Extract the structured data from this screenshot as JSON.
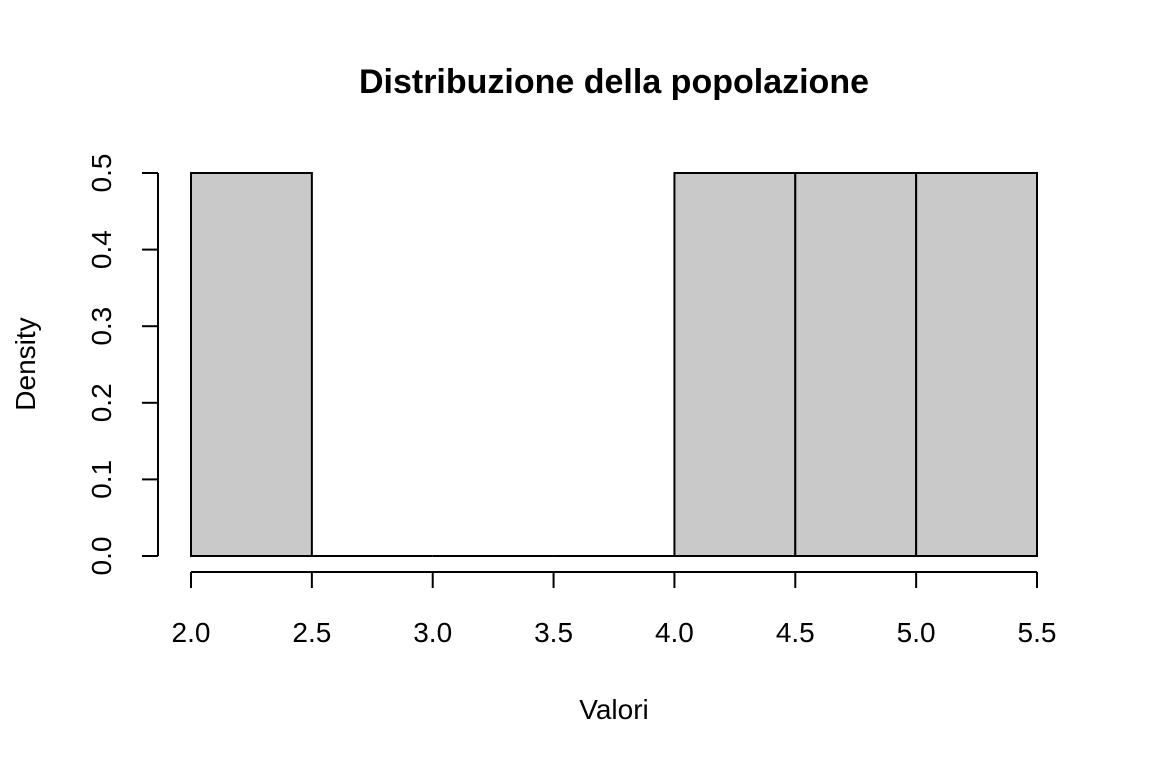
{
  "chart_data": {
    "type": "bar",
    "subtype": "histogram",
    "title": "Distribuzione della popolazione",
    "xlabel": "Valori",
    "ylabel": "Density",
    "bins": [
      {
        "start": 2.0,
        "end": 2.5,
        "density": 0.5
      },
      {
        "start": 2.5,
        "end": 3.0,
        "density": 0.0
      },
      {
        "start": 3.0,
        "end": 3.5,
        "density": 0.0
      },
      {
        "start": 3.5,
        "end": 4.0,
        "density": 0.0
      },
      {
        "start": 4.0,
        "end": 4.5,
        "density": 0.5
      },
      {
        "start": 4.5,
        "end": 5.0,
        "density": 0.5
      },
      {
        "start": 5.0,
        "end": 5.5,
        "density": 0.5
      }
    ],
    "xlim": [
      2.0,
      5.5
    ],
    "ylim": [
      0.0,
      0.5
    ],
    "x_ticks": [
      "2.0",
      "2.5",
      "3.0",
      "3.5",
      "4.0",
      "4.5",
      "5.0",
      "5.5"
    ],
    "y_ticks": [
      "0.0",
      "0.1",
      "0.2",
      "0.3",
      "0.4",
      "0.5"
    ],
    "bar_fill": "#c9c9c9",
    "bar_stroke": "#000000",
    "grid": false,
    "legend": "none"
  }
}
